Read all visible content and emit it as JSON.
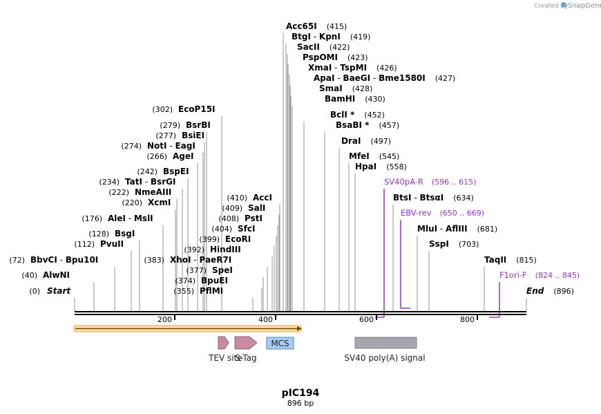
{
  "credit": "Created by",
  "brand": "SnapGene",
  "plasmid": {
    "name": "pIC194",
    "length_label": "896 bp"
  },
  "sites": [
    {
      "parts": [
        [
          "Start",
          true
        ]
      ],
      "pos": "(0)"
    },
    {
      "parts": [
        [
          "AlwNI",
          false
        ]
      ],
      "pos": "(40)"
    },
    {
      "parts": [
        [
          "BbvCI",
          false
        ],
        [
          " - ",
          false
        ],
        [
          "Bpu10I",
          false
        ]
      ],
      "pos": "(72)"
    },
    {
      "parts": [
        [
          "PvuII",
          false
        ]
      ],
      "pos": "(112)"
    },
    {
      "parts": [
        [
          "BsgI",
          false
        ]
      ],
      "pos": "(128)"
    },
    {
      "parts": [
        [
          "AleI",
          false
        ],
        [
          " - ",
          false
        ],
        [
          "MslI",
          false
        ]
      ],
      "pos": "(176)"
    },
    {
      "parts": [
        [
          "XcmI",
          false
        ]
      ],
      "pos": "(220)"
    },
    {
      "parts": [
        [
          "NmeAIII",
          false
        ]
      ],
      "pos": "(222)"
    },
    {
      "parts": [
        [
          "TatI",
          false
        ],
        [
          " - ",
          false
        ],
        [
          "BsrGI",
          false
        ]
      ],
      "pos": "(234)"
    },
    {
      "parts": [
        [
          "BspEI",
          false
        ]
      ],
      "pos": "(242)"
    },
    {
      "parts": [
        [
          "AgeI",
          false
        ]
      ],
      "pos": "(266)"
    },
    {
      "parts": [
        [
          "NotI",
          false
        ],
        [
          " - ",
          false
        ],
        [
          "EagI",
          false
        ]
      ],
      "pos": "(274)"
    },
    {
      "parts": [
        [
          "BsiEI",
          false
        ]
      ],
      "pos": "(277)"
    },
    {
      "parts": [
        [
          "BsrBI",
          false
        ]
      ],
      "pos": "(279)"
    },
    {
      "parts": [
        [
          "EcoP15I",
          false
        ]
      ],
      "pos": "(302)"
    },
    {
      "parts": [
        [
          "PflMI",
          false
        ]
      ],
      "pos": "(355)"
    },
    {
      "parts": [
        [
          "BpuEI",
          false
        ]
      ],
      "pos": "(374)"
    },
    {
      "parts": [
        [
          "SpeI",
          false
        ]
      ],
      "pos": "(377)"
    },
    {
      "parts": [
        [
          "XhoI",
          false
        ],
        [
          " - ",
          false
        ],
        [
          "PaeR7I",
          false
        ]
      ],
      "pos": "(383)"
    },
    {
      "parts": [
        [
          "HindIII",
          false
        ]
      ],
      "pos": "(392)"
    },
    {
      "parts": [
        [
          "EcoRI",
          false
        ]
      ],
      "pos": "(399)"
    },
    {
      "parts": [
        [
          "SfcI",
          false
        ]
      ],
      "pos": "(404)"
    },
    {
      "parts": [
        [
          "PstI",
          false
        ]
      ],
      "pos": "(408)"
    },
    {
      "parts": [
        [
          "SalI",
          false
        ]
      ],
      "pos": "(409)"
    },
    {
      "parts": [
        [
          "AccI",
          false
        ]
      ],
      "pos": "(410)"
    },
    {
      "parts": [
        [
          "Acc65I",
          false
        ]
      ],
      "pos": "(415)"
    },
    {
      "parts": [
        [
          "BtgI",
          false
        ],
        [
          " - ",
          false
        ],
        [
          "KpnI",
          false
        ]
      ],
      "pos": "(419)"
    },
    {
      "parts": [
        [
          "SacII",
          false
        ]
      ],
      "pos": "(422)"
    },
    {
      "parts": [
        [
          "PspOMI",
          false
        ]
      ],
      "pos": "(423)"
    },
    {
      "parts": [
        [
          "XmaI",
          false
        ],
        [
          " - ",
          false
        ],
        [
          "TspMI",
          false
        ]
      ],
      "pos": "(426)"
    },
    {
      "parts": [
        [
          "ApaI",
          false
        ],
        [
          " - ",
          false
        ],
        [
          "BaeGI",
          false
        ],
        [
          " - ",
          false
        ],
        [
          "Bme1580I",
          false
        ]
      ],
      "pos": "(427)"
    },
    {
      "parts": [
        [
          "SmaI",
          false
        ]
      ],
      "pos": "(428)"
    },
    {
      "parts": [
        [
          "BamHI",
          false
        ]
      ],
      "pos": "(430)"
    },
    {
      "parts": [
        [
          "BclI",
          false
        ],
        [
          " *",
          false
        ]
      ],
      "pos": "(452)"
    },
    {
      "parts": [
        [
          "BsaBI",
          false
        ],
        [
          " *",
          false
        ]
      ],
      "pos": "(457)"
    },
    {
      "parts": [
        [
          "DraI",
          false
        ]
      ],
      "pos": "(497)"
    },
    {
      "parts": [
        [
          "MfeI",
          false
        ]
      ],
      "pos": "(545)"
    },
    {
      "parts": [
        [
          "HpaI",
          false
        ]
      ],
      "pos": "(558)"
    },
    {
      "parts": [
        [
          "BtsI",
          false
        ],
        [
          " - ",
          false
        ],
        [
          "BtsαI",
          false
        ]
      ],
      "pos": "(634)"
    },
    {
      "parts": [
        [
          "MluI",
          false
        ],
        [
          " - ",
          false
        ],
        [
          "AflIII",
          false
        ]
      ],
      "pos": "(681)"
    },
    {
      "parts": [
        [
          "SspI",
          false
        ]
      ],
      "pos": "(703)"
    },
    {
      "parts": [
        [
          "TaqII",
          false
        ]
      ],
      "pos": "(815)"
    },
    {
      "parts": [
        [
          "End",
          true
        ]
      ],
      "pos": "(896)"
    }
  ],
  "primers": [
    {
      "name": "SV40pA-R",
      "range": "(596 .. 615)",
      "color": "#9b30d9"
    },
    {
      "name": "EBV-rev",
      "range": "(650 .. 669)",
      "color": "#9b30d9"
    },
    {
      "name": "F1ori-F",
      "range": "(824 .. 845)",
      "color": "#9b30d9"
    }
  ],
  "ticks": [
    "200",
    "400",
    "600",
    "800"
  ],
  "features": [
    {
      "name": "TEV site",
      "color": "#c98aa6"
    },
    {
      "name": "S-Tag",
      "color": "#c98aa6"
    },
    {
      "name": "MCS",
      "color": "#a8cdf5"
    },
    {
      "name": "SV40 poly(A) signal",
      "color": "#a4a7ad"
    }
  ],
  "orf_color": "#f5a623"
}
